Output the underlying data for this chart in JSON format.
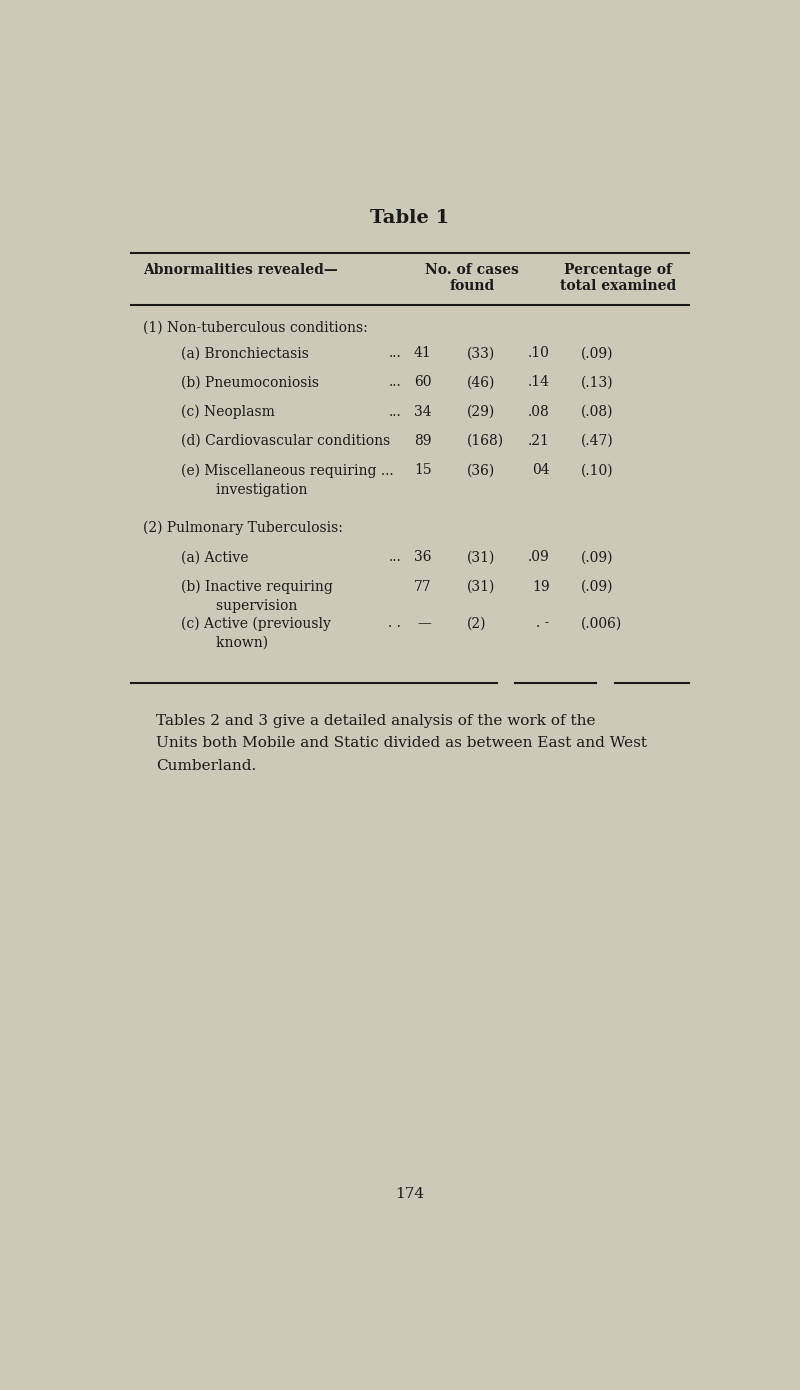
{
  "title": "Table 1",
  "background_color": "#cdc9b8",
  "text_color": "#1a1a1a",
  "col_header_1": "Abnormalities revealed—",
  "col_header_2": "No. of cases\nfound",
  "col_header_3": "Percentage of\ntotal examined",
  "section1_header": "(1) Non-tuberculous conditions:",
  "section2_header": "(2) Pulmonary Tuberculosis:",
  "rows": [
    {
      "label": "(a) Bronchiectasis",
      "dots": "...",
      "val1": "41",
      "val2": "(33)",
      "val3": ".10",
      "val4": "(.09)"
    },
    {
      "label": "(b) Pneumoconiosis",
      "dots": "...",
      "val1": "60",
      "val2": "(46)",
      "val3": ".14",
      "val4": "(.13)"
    },
    {
      "label": "(c) Neoplasm",
      "dots": "...",
      "val1": "34",
      "val2": "(29)",
      "val3": ".08",
      "val4": "(.08)"
    },
    {
      "label": "(d) Cardiovascular conditions",
      "dots": "",
      "val1": "89",
      "val2": "(168)",
      "val3": ".21",
      "val4": "(.47)"
    },
    {
      "label_line1": "(e) Miscellaneous requiring ...",
      "label_line2": "        investigation",
      "dots": "",
      "val1": "15",
      "val2": "(36)",
      "val3": "04",
      "val4": "(.10)"
    }
  ],
  "rows2": [
    {
      "label_line1": "(a) Active",
      "label_line2": "",
      "dots": "...",
      "val1": "36",
      "val2": "(31)",
      "val3": ".09",
      "val4": "(.09)"
    },
    {
      "label_line1": "(b) Inactive requiring",
      "label_line2": "        supervision",
      "dots": "",
      "val1": "77",
      "val2": "(31)",
      "val3": "19",
      "val4": "(.09)"
    },
    {
      "label_line1": "(c) Active (previously",
      "label_line2": "        known)",
      "dots": ". .",
      "val1": "—",
      "val2": "(2)",
      "val3": ". -",
      "val4": "(.006)"
    }
  ],
  "footer_text": "Tables 2 and 3 give a detailed analysis of the work of the\nUnits both Mobile and Static divided as between East and West\nCumberland.",
  "page_number": "174"
}
